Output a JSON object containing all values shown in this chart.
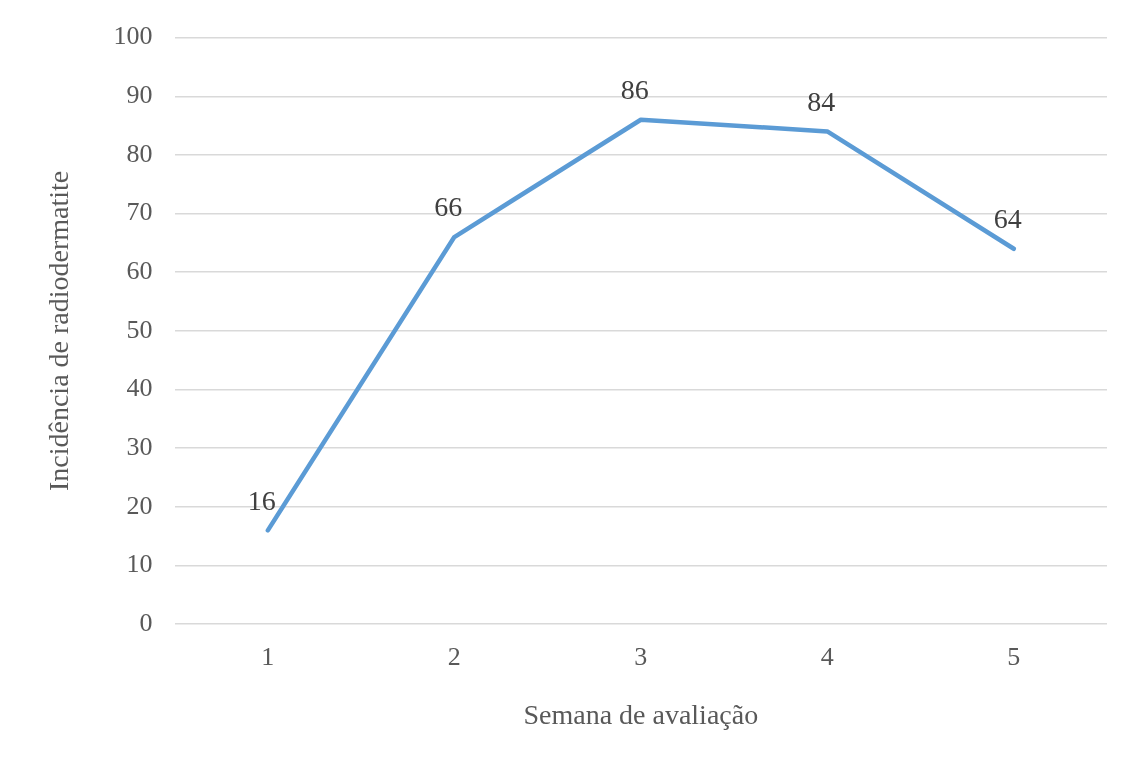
{
  "chart_data": {
    "type": "line",
    "xlabel": "Semana de avaliação",
    "ylabel": "Incidência de radiodermatite",
    "categories": [
      "1",
      "2",
      "3",
      "4",
      "5"
    ],
    "series": [
      {
        "color": "#5b9bd5",
        "values": [
          16,
          66,
          86,
          84,
          64
        ]
      }
    ],
    "ylim": [
      0,
      100
    ],
    "yticks": [
      0,
      10,
      20,
      30,
      40,
      50,
      60,
      70,
      80,
      90,
      100
    ],
    "grid": "y",
    "legend": false,
    "marker": "none",
    "line_style": "solid",
    "data_labels": true
  }
}
